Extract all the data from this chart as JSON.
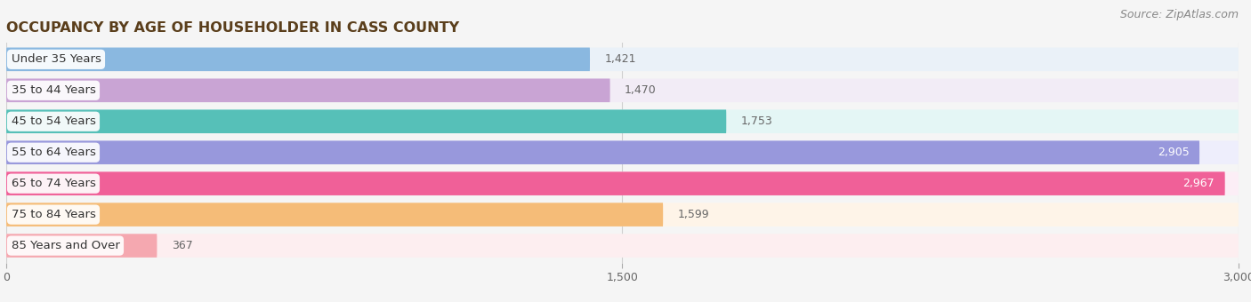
{
  "title": "OCCUPANCY BY AGE OF HOUSEHOLDER IN CASS COUNTY",
  "source": "Source: ZipAtlas.com",
  "categories": [
    "Under 35 Years",
    "35 to 44 Years",
    "45 to 54 Years",
    "55 to 64 Years",
    "65 to 74 Years",
    "75 to 84 Years",
    "85 Years and Over"
  ],
  "values": [
    1421,
    1470,
    1753,
    2905,
    2967,
    1599,
    367
  ],
  "bar_colors": [
    "#8ab8e0",
    "#c9a4d4",
    "#56c0b8",
    "#9898dc",
    "#f06098",
    "#f5bc78",
    "#f5a8b0"
  ],
  "bar_bg_colors": [
    "#eaf1f8",
    "#f2ecf6",
    "#e4f6f5",
    "#eeeefc",
    "#fceef6",
    "#fef4e8",
    "#fdeef0"
  ],
  "xlim": [
    0,
    3000
  ],
  "xticks": [
    0,
    1500,
    3000
  ],
  "title_color": "#5a3e1b",
  "title_fontsize": 11.5,
  "label_fontsize": 9.5,
  "value_fontsize": 9,
  "source_fontsize": 9,
  "bar_height": 0.76,
  "background_color": "#f5f5f5",
  "value_inside_threshold": 2000
}
